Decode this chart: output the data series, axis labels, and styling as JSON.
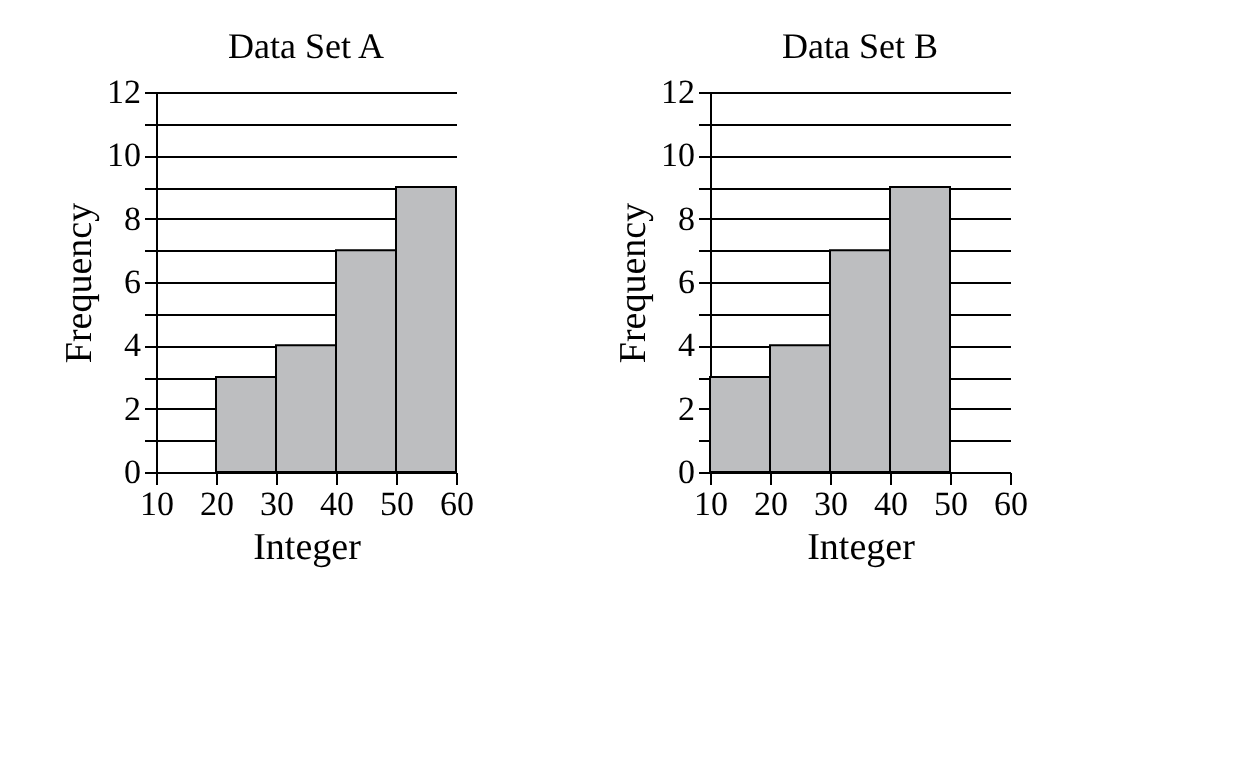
{
  "chart_data": [
    {
      "type": "histogram",
      "title": "Data Set A",
      "xlabel": "Integer",
      "ylabel": "Frequency",
      "bins": [
        10,
        20,
        30,
        40,
        50,
        60
      ],
      "values": [
        0,
        3,
        4,
        7,
        9
      ],
      "color": "#bdbec0",
      "xlim": [
        10,
        60
      ],
      "xticks": [
        10,
        20,
        30,
        40,
        50,
        60
      ],
      "ylim": [
        0,
        12
      ],
      "yticks": [
        0,
        {
          "value": 1,
          "label": null
        },
        2,
        {
          "value": 3,
          "label": null
        },
        4,
        {
          "value": 5,
          "label": null
        },
        6,
        {
          "value": 7,
          "label": null
        },
        8,
        {
          "value": 9,
          "label": null
        },
        10,
        {
          "value": 11,
          "label": null
        },
        12
      ],
      "grid": "y"
    },
    {
      "type": "histogram",
      "title": "Data Set B",
      "xlabel": "Integer",
      "ylabel": "Frequency",
      "bins": [
        10,
        20,
        30,
        40,
        50,
        60
      ],
      "values": [
        3,
        4,
        7,
        9,
        0
      ],
      "color": "#bdbec0",
      "xlim": [
        10,
        60
      ],
      "xticks": [
        10,
        20,
        30,
        40,
        50,
        60
      ],
      "ylim": [
        0,
        12
      ],
      "yticks": [
        0,
        {
          "value": 1,
          "label": null
        },
        2,
        {
          "value": 3,
          "label": null
        },
        4,
        {
          "value": 5,
          "label": null
        },
        6,
        {
          "value": 7,
          "label": null
        },
        8,
        {
          "value": 9,
          "label": null
        },
        10,
        {
          "value": 11,
          "label": null
        },
        12
      ],
      "grid": "y"
    }
  ]
}
